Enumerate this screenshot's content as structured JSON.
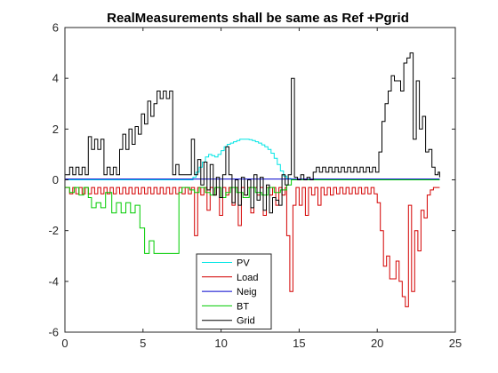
{
  "chart_data": {
    "type": "line",
    "title": "RealMeasurements shall be same as Ref +Pgrid",
    "xlabel": "",
    "ylabel": "",
    "xlim": [
      0,
      25
    ],
    "ylim": [
      -6,
      6
    ],
    "xticks": [
      0,
      5,
      10,
      15,
      20,
      25
    ],
    "yticks": [
      -6,
      -4,
      -2,
      0,
      2,
      4,
      6
    ],
    "grid": false,
    "legend_position": "bottom-center",
    "step": true,
    "series": [
      {
        "name": "PV",
        "color": "#00e5e5",
        "x": [
          0,
          8.2,
          8.4,
          8.6,
          8.8,
          9.0,
          9.2,
          9.4,
          9.6,
          9.8,
          10.0,
          10.2,
          10.4,
          10.6,
          10.8,
          11.0,
          11.2,
          11.4,
          11.6,
          11.8,
          12.0,
          12.2,
          12.4,
          12.6,
          12.8,
          13.0,
          13.2,
          13.4,
          13.6,
          13.8,
          14.0,
          14.2,
          14.5,
          24
        ],
        "y": [
          0,
          0.1,
          0.3,
          0.5,
          0.7,
          0.9,
          1.0,
          0.95,
          0.9,
          1.0,
          1.15,
          1.3,
          1.4,
          1.45,
          1.5,
          1.55,
          1.6,
          1.6,
          1.6,
          1.58,
          1.55,
          1.5,
          1.45,
          1.38,
          1.3,
          1.2,
          1.05,
          0.85,
          0.6,
          0.35,
          0.15,
          0.05,
          0,
          0
        ]
      },
      {
        "name": "Load",
        "color": "#d40000",
        "x": [
          0,
          0.3,
          0.5,
          0.7,
          0.9,
          1.1,
          1.3,
          1.5,
          1.7,
          1.9,
          2.1,
          2.3,
          2.5,
          2.7,
          2.9,
          3.1,
          3.3,
          3.5,
          3.7,
          3.9,
          4.1,
          4.3,
          4.5,
          4.7,
          4.9,
          5.1,
          5.3,
          5.5,
          5.7,
          5.9,
          6.1,
          6.3,
          6.5,
          6.7,
          6.9,
          7.1,
          7.3,
          7.5,
          7.7,
          7.9,
          8.1,
          8.3,
          8.5,
          8.7,
          8.9,
          9.1,
          9.3,
          9.5,
          9.7,
          9.9,
          10.1,
          10.3,
          10.5,
          10.7,
          10.9,
          11.1,
          11.3,
          11.5,
          11.7,
          11.9,
          12.1,
          12.3,
          12.5,
          12.7,
          12.9,
          13.1,
          13.3,
          13.5,
          13.7,
          13.9,
          14.1,
          14.2,
          14.4,
          14.6,
          14.8,
          15.0,
          15.2,
          15.4,
          15.6,
          15.8,
          16.0,
          16.2,
          16.4,
          16.6,
          16.8,
          17.0,
          17.2,
          17.4,
          17.6,
          17.8,
          18.0,
          18.2,
          18.4,
          18.6,
          18.8,
          19.0,
          19.2,
          19.4,
          19.6,
          19.8,
          20.0,
          20.2,
          20.4,
          20.6,
          20.8,
          21.0,
          21.2,
          21.4,
          21.6,
          21.8,
          22.0,
          22.2,
          22.4,
          22.6,
          22.8,
          23.0,
          23.2,
          23.4,
          23.6,
          23.8,
          24.0
        ],
        "y": [
          -0.3,
          -0.55,
          -0.3,
          -0.55,
          -0.3,
          -0.55,
          -0.3,
          -0.55,
          -0.3,
          -0.55,
          -0.3,
          -0.55,
          -0.3,
          -0.55,
          -0.3,
          -0.55,
          -0.3,
          -0.55,
          -0.3,
          -0.55,
          -0.3,
          -0.55,
          -0.3,
          -0.55,
          -0.3,
          -0.55,
          -0.3,
          -0.55,
          -0.3,
          -0.55,
          -0.3,
          -0.55,
          -0.3,
          -0.55,
          -0.3,
          -0.55,
          -0.3,
          -0.55,
          -0.3,
          -0.55,
          -0.3,
          -2.2,
          -0.3,
          -0.6,
          -0.3,
          -1.2,
          -0.3,
          -0.6,
          -0.3,
          -1.4,
          -0.3,
          -0.6,
          -0.3,
          -1.0,
          -0.3,
          -1.8,
          -0.3,
          -0.6,
          -0.3,
          -1.3,
          -0.3,
          -0.6,
          -0.3,
          -1.4,
          -0.3,
          -0.6,
          -0.3,
          -1.0,
          -0.3,
          -0.6,
          -0.3,
          -2.2,
          -4.4,
          -1.0,
          -0.3,
          -1.0,
          -0.3,
          -1.4,
          -0.3,
          -0.6,
          -0.3,
          -1.0,
          -0.3,
          -0.6,
          -0.3,
          -0.6,
          -0.3,
          -0.55,
          -0.3,
          -0.55,
          -0.3,
          -0.55,
          -0.3,
          -0.55,
          -0.3,
          -0.55,
          -0.3,
          -0.55,
          -0.3,
          -0.55,
          -0.9,
          -2.0,
          -3.4,
          -3.0,
          -3.9,
          -3.9,
          -3.2,
          -4.0,
          -4.6,
          -5.0,
          -1.0,
          -4.4,
          -2.0,
          -2.8,
          -1.2,
          -1.5,
          -0.6,
          -0.4,
          -0.3,
          -0.3,
          -0.3
        ]
      },
      {
        "name": "Neig",
        "color": "#0000cc",
        "x": [
          0,
          24
        ],
        "y": [
          0.03,
          0.03
        ]
      },
      {
        "name": "BT",
        "color": "#00cc00",
        "x": [
          0,
          0.3,
          0.6,
          0.9,
          1.2,
          1.5,
          1.7,
          2.0,
          2.3,
          2.6,
          3.0,
          3.3,
          3.6,
          3.9,
          4.2,
          4.5,
          4.8,
          5.1,
          5.4,
          5.7,
          6.0,
          6.3,
          6.6,
          7.3,
          7.5,
          8.0,
          8.3,
          8.6,
          9.0,
          9.3,
          9.6,
          10.0,
          10.3,
          10.6,
          11.0,
          11.4,
          11.8,
          12.2,
          12.6,
          13.0,
          13.4,
          13.8,
          14.2,
          14.5,
          24
        ],
        "y": [
          -0.3,
          -0.5,
          -0.3,
          -0.6,
          -0.3,
          -0.7,
          -1.1,
          -0.9,
          -1.1,
          -0.5,
          -1.3,
          -0.9,
          -1.3,
          -0.9,
          -1.3,
          -1.0,
          -1.9,
          -2.9,
          -2.4,
          -2.9,
          -2.9,
          -2.9,
          -2.9,
          -0.5,
          -0.3,
          -0.4,
          -0.5,
          -0.3,
          -0.5,
          -0.6,
          -0.3,
          -0.7,
          -0.5,
          -0.3,
          -0.5,
          -0.7,
          -0.3,
          -0.5,
          -0.6,
          -0.3,
          -0.5,
          -0.4,
          -0.2,
          0,
          0
        ]
      },
      {
        "name": "Grid",
        "color": "#000000",
        "x": [
          0,
          0.3,
          0.5,
          0.7,
          0.9,
          1.1,
          1.3,
          1.5,
          1.7,
          1.9,
          2.1,
          2.3,
          2.5,
          2.7,
          2.9,
          3.1,
          3.3,
          3.5,
          3.7,
          3.9,
          4.1,
          4.3,
          4.5,
          4.7,
          4.9,
          5.1,
          5.3,
          5.5,
          5.7,
          5.9,
          6.1,
          6.3,
          6.5,
          6.7,
          6.9,
          7.1,
          7.3,
          7.5,
          7.8,
          8.1,
          8.3,
          8.5,
          8.7,
          8.9,
          9.1,
          9.3,
          9.5,
          9.7,
          9.9,
          10.1,
          10.3,
          10.5,
          10.7,
          10.9,
          11.1,
          11.3,
          11.5,
          11.7,
          11.9,
          12.1,
          12.3,
          12.5,
          12.7,
          12.9,
          13.1,
          13.3,
          13.5,
          13.7,
          13.9,
          14.1,
          14.3,
          14.5,
          14.7,
          14.9,
          15.1,
          15.3,
          15.5,
          15.7,
          15.9,
          16.1,
          16.3,
          16.5,
          16.7,
          16.9,
          17.1,
          17.3,
          17.5,
          17.7,
          17.9,
          18.1,
          18.3,
          18.5,
          18.7,
          18.9,
          19.1,
          19.3,
          19.5,
          19.7,
          19.9,
          20.1,
          20.3,
          20.5,
          20.7,
          20.9,
          21.1,
          21.3,
          21.5,
          21.7,
          21.9,
          22.1,
          22.3,
          22.5,
          22.7,
          22.9,
          23.1,
          23.3,
          23.5,
          23.7,
          23.9,
          24.0
        ],
        "y": [
          0.2,
          0.5,
          0.2,
          0.5,
          0.2,
          0.5,
          0.2,
          1.7,
          1.2,
          1.6,
          1.2,
          1.6,
          0.2,
          0.5,
          0.2,
          0.5,
          0.2,
          1.2,
          1.8,
          1.2,
          2.0,
          1.4,
          2.1,
          1.8,
          2.6,
          2.2,
          3.1,
          2.5,
          3.0,
          3.5,
          3.2,
          3.5,
          3.2,
          3.5,
          0.2,
          0.6,
          0.2,
          0.2,
          0.2,
          1.6,
          0.2,
          0.8,
          -0.2,
          0.7,
          -0.4,
          0.6,
          -0.6,
          0.1,
          -0.7,
          0.2,
          1.3,
          0.2,
          -0.9,
          0.0,
          -1.0,
          0.1,
          -0.6,
          0.0,
          -1.1,
          0.2,
          -0.8,
          0.1,
          -1.2,
          -0.2,
          -1.3,
          -0.7,
          -0.8,
          -1.0,
          0.2,
          -0.2,
          0.2,
          4.0,
          0.1,
          0.0,
          0.2,
          0.0,
          0.1,
          0.0,
          0.3,
          0.5,
          0.3,
          0.5,
          0.3,
          0.5,
          0.3,
          0.5,
          0.3,
          0.5,
          0.3,
          0.5,
          0.3,
          0.5,
          0.3,
          0.5,
          0.3,
          0.5,
          0.3,
          0.5,
          0.3,
          1.1,
          2.3,
          3.0,
          3.5,
          4.1,
          3.9,
          3.9,
          3.5,
          4.6,
          4.8,
          5.0,
          1.6,
          3.9,
          2.0,
          2.5,
          1.1,
          1.2,
          0.5,
          0.2,
          0.3,
          0.1
        ]
      }
    ]
  }
}
